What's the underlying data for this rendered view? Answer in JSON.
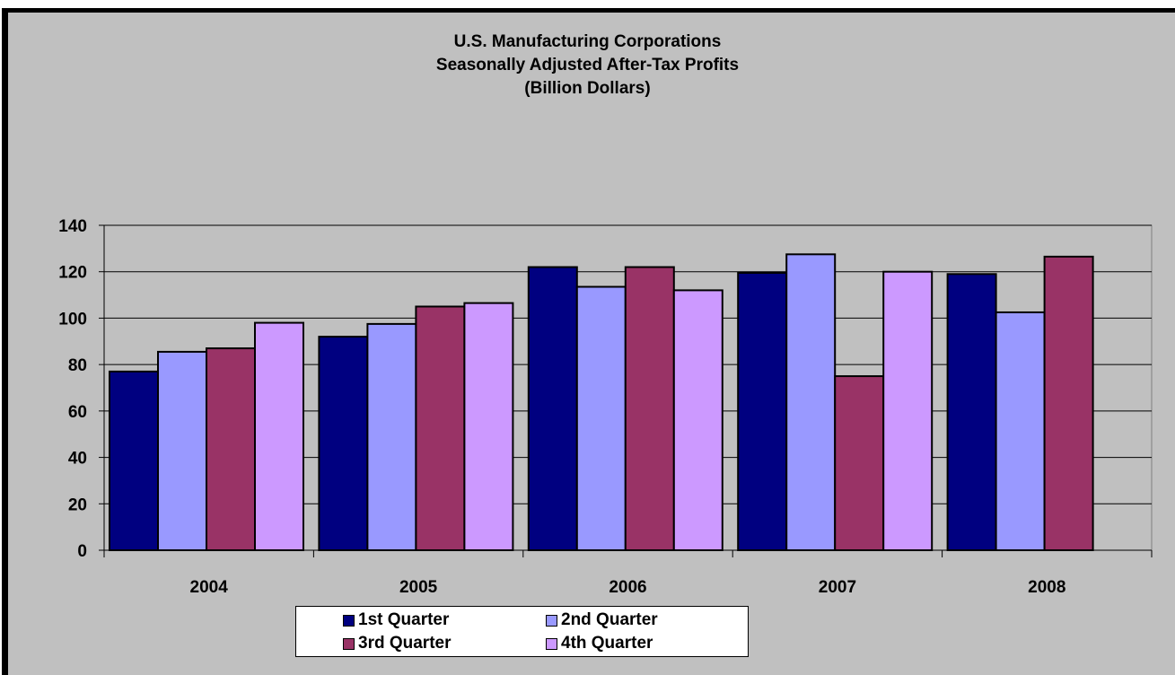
{
  "chart_data": {
    "type": "bar",
    "title_lines": [
      "U.S. Manufacturing Corporations",
      "Seasonally Adjusted After-Tax Profits",
      "(Billion Dollars)"
    ],
    "categories": [
      "2004",
      "2005",
      "2006",
      "2007",
      "2008"
    ],
    "series": [
      {
        "name": "1st Quarter",
        "color": "#000080",
        "values": [
          77,
          92,
          122,
          119.5,
          119
        ]
      },
      {
        "name": "2nd Quarter",
        "color": "#9999ff",
        "values": [
          85.5,
          97.5,
          113.5,
          127.5,
          102.5
        ]
      },
      {
        "name": "3rd Quarter",
        "color": "#993366",
        "values": [
          87,
          105,
          122,
          75,
          126.5
        ]
      },
      {
        "name": "4th Quarter",
        "color": "#cc99ff",
        "values": [
          98,
          106.5,
          112,
          120,
          null
        ]
      }
    ],
    "ylim": [
      0,
      140
    ],
    "yticks": [
      0,
      20,
      40,
      60,
      80,
      100,
      120,
      140
    ],
    "grid": true,
    "legend_position": "bottom",
    "background_color": "#c0c0c0",
    "gridline_color": "#000000"
  }
}
